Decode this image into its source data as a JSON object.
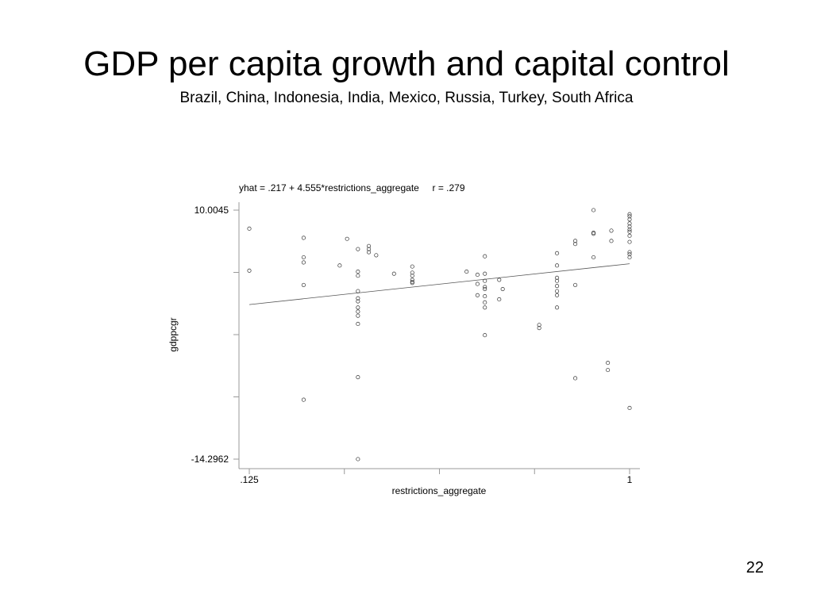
{
  "slide": {
    "title": "GDP per capita growth and capital control",
    "subtitle": "Brazil, China, Indonesia, India, Mexico, Russia, Turkey, South Africa",
    "page_number": "22"
  },
  "chart_data": {
    "type": "scatter",
    "header": "yhat = .217 + 4.555*restrictions_aggregate     r = .279",
    "xlabel": "restrictions_aggregate",
    "ylabel": "gdppcgr",
    "xlim": [
      0.125,
      1
    ],
    "ylim": [
      -14.2962,
      10.0045
    ],
    "x_tick_labels": [
      ".125",
      "1"
    ],
    "y_tick_labels": [
      "10.0045",
      "-14.2962"
    ],
    "y_tick_values": [
      10.0045,
      -14.2962
    ],
    "fit_line": {
      "intercept": 0.217,
      "slope": 4.555,
      "r": 0.279
    },
    "points": [
      [
        0.125,
        8.2
      ],
      [
        0.125,
        4.1
      ],
      [
        0.25,
        7.3
      ],
      [
        0.25,
        5.4
      ],
      [
        0.25,
        4.9
      ],
      [
        0.25,
        2.7
      ],
      [
        0.25,
        -8.5
      ],
      [
        0.333,
        4.6
      ],
      [
        0.35,
        7.2
      ],
      [
        0.375,
        6.2
      ],
      [
        0.375,
        4.0
      ],
      [
        0.375,
        3.6
      ],
      [
        0.375,
        2.1
      ],
      [
        0.375,
        1.4
      ],
      [
        0.375,
        1.1
      ],
      [
        0.375,
        0.5
      ],
      [
        0.375,
        0.1
      ],
      [
        0.375,
        -0.3
      ],
      [
        0.375,
        -1.1
      ],
      [
        0.375,
        -6.3
      ],
      [
        0.375,
        -14.2962
      ],
      [
        0.4,
        6.5
      ],
      [
        0.4,
        6.2
      ],
      [
        0.4,
        5.9
      ],
      [
        0.417,
        5.6
      ],
      [
        0.458,
        3.8
      ],
      [
        0.5,
        4.5
      ],
      [
        0.5,
        3.9
      ],
      [
        0.5,
        3.6
      ],
      [
        0.5,
        3.2
      ],
      [
        0.5,
        2.9
      ],
      [
        0.5,
        3.0
      ],
      [
        0.625,
        4.0
      ],
      [
        0.65,
        3.7
      ],
      [
        0.65,
        2.8
      ],
      [
        0.65,
        1.7
      ],
      [
        0.667,
        5.5
      ],
      [
        0.667,
        3.8
      ],
      [
        0.667,
        3.1
      ],
      [
        0.667,
        2.5
      ],
      [
        0.667,
        2.3
      ],
      [
        0.667,
        1.6
      ],
      [
        0.667,
        1.0
      ],
      [
        0.667,
        0.5
      ],
      [
        0.667,
        -2.2
      ],
      [
        0.7,
        3.2
      ],
      [
        0.7,
        1.3
      ],
      [
        0.708,
        2.3
      ],
      [
        0.792,
        -1.2
      ],
      [
        0.792,
        -1.5
      ],
      [
        0.833,
        5.8
      ],
      [
        0.833,
        4.6
      ],
      [
        0.833,
        3.4
      ],
      [
        0.833,
        3.1
      ],
      [
        0.833,
        2.6
      ],
      [
        0.833,
        2.1
      ],
      [
        0.833,
        1.7
      ],
      [
        0.833,
        0.5
      ],
      [
        0.875,
        7.0
      ],
      [
        0.875,
        6.7
      ],
      [
        0.875,
        2.7
      ],
      [
        0.875,
        -6.4
      ],
      [
        0.917,
        10.0045
      ],
      [
        0.917,
        7.8
      ],
      [
        0.917,
        7.7
      ],
      [
        0.917,
        5.4
      ],
      [
        0.95,
        -4.9
      ],
      [
        0.95,
        -5.6
      ],
      [
        0.958,
        8.0
      ],
      [
        0.958,
        7.0
      ],
      [
        1.0,
        9.6
      ],
      [
        1.0,
        9.4
      ],
      [
        1.0,
        9.1
      ],
      [
        1.0,
        8.7
      ],
      [
        1.0,
        8.4
      ],
      [
        1.0,
        8.1
      ],
      [
        1.0,
        7.9
      ],
      [
        1.0,
        7.5
      ],
      [
        1.0,
        6.9
      ],
      [
        1.0,
        5.9
      ],
      [
        1.0,
        5.7
      ],
      [
        1.0,
        5.4
      ],
      [
        1.0,
        -9.3
      ]
    ]
  }
}
